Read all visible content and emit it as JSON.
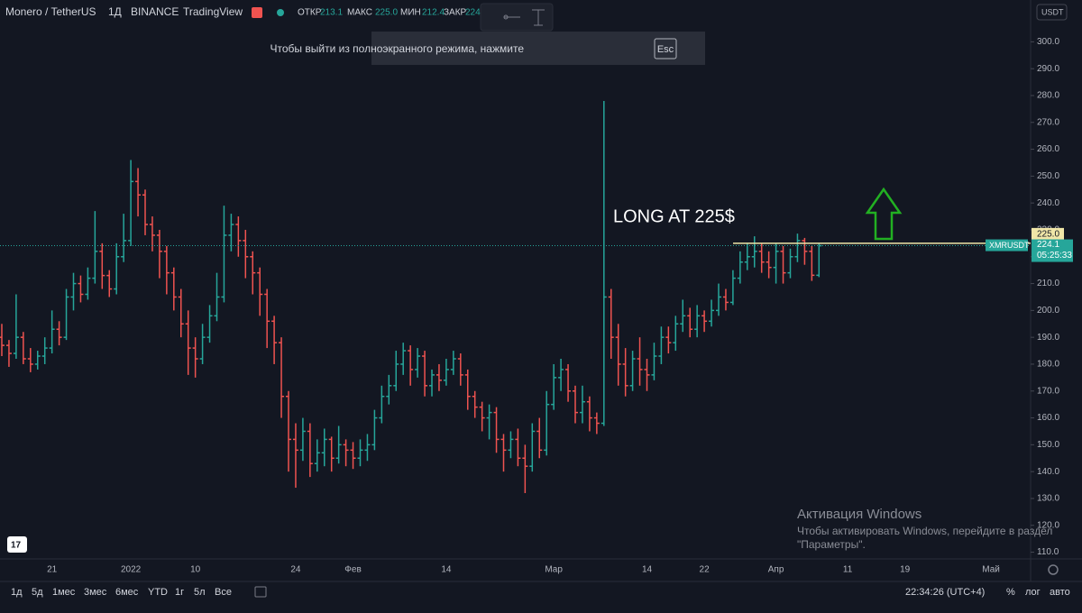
{
  "header": {
    "symbol": "Monero / TetherUS",
    "interval": "1Д",
    "exchange": "BINANCE",
    "source": "TradingView",
    "open_label": "ОТКР",
    "open": 213.1,
    "high_label": "МАКС",
    "high": "225.0",
    "low_label": "МИН",
    "low": 212.4,
    "close_label": "ЗАКР",
    "close": "224"
  },
  "currency": "USDT",
  "fullscreen_notice": {
    "text": "Чтобы выйти из полноэкранного режима, нажмите",
    "key": "Esc"
  },
  "watermark": {
    "title": "Активация Windows",
    "line1": "Чтобы активировать Windows, перейдите в раздел",
    "line2": "\"Параметры\"."
  },
  "timeframes": [
    "1д",
    "5д",
    "1мес",
    "3мес",
    "6мес",
    "YTD",
    "1г",
    "5л",
    "Все"
  ],
  "clock": "22:34:26 (UTC+4)",
  "scale_options": [
    "%",
    "лог",
    "авто"
  ],
  "chart_data": {
    "type": "ohlc",
    "categories": [
      null,
      null,
      null,
      null,
      null,
      null,
      null,
      "21",
      null,
      null,
      null,
      null,
      null,
      null,
      null,
      null,
      null,
      null,
      "2022",
      null,
      null,
      null,
      null,
      null,
      null,
      null,
      null,
      "10",
      null,
      null,
      null,
      null,
      null,
      null,
      null,
      null,
      null,
      null,
      null,
      null,
      null,
      "24",
      null,
      null,
      null,
      null,
      null,
      null,
      null,
      "Фев",
      null,
      null,
      null,
      null,
      null,
      null,
      null,
      null,
      null,
      null,
      null,
      null,
      "14",
      null,
      null,
      null,
      null,
      null,
      null,
      null,
      null,
      null,
      null,
      null,
      null,
      null,
      null,
      "Мар",
      null,
      null,
      null,
      null,
      null,
      null,
      null,
      null,
      null,
      null,
      null,
      null,
      "14",
      null,
      null,
      null,
      null,
      null,
      null,
      null,
      "22",
      null,
      null,
      null,
      null,
      null,
      null,
      null,
      null,
      null,
      "Апр",
      null,
      null,
      null,
      null,
      null,
      null,
      null,
      null,
      null,
      "11",
      null,
      null,
      null,
      null,
      null,
      null,
      null,
      "19",
      null,
      null,
      null,
      null,
      null,
      null,
      null,
      null,
      null,
      null,
      null,
      "Май",
      null,
      null,
      null,
      null,
      null
    ],
    "open": [
      190,
      187,
      184,
      190,
      182,
      180,
      183,
      186,
      193,
      190,
      205,
      210,
      206,
      212,
      222,
      213,
      208,
      220,
      226,
      248,
      243,
      232,
      228,
      222,
      214,
      205,
      195,
      186,
      182,
      190,
      198,
      205,
      228,
      232,
      226,
      220,
      214,
      206,
      196,
      188,
      168,
      152,
      148,
      155,
      143,
      147,
      152,
      145,
      150,
      148,
      145,
      148,
      150,
      160,
      168,
      172,
      180,
      185,
      178,
      183,
      172,
      176,
      174,
      178,
      182,
      176,
      168,
      164,
      160,
      162,
      152,
      148,
      152,
      145,
      142,
      155,
      148,
      165,
      175,
      178,
      170,
      162,
      166,
      160,
      158,
      205,
      190,
      180,
      172,
      182,
      178,
      176,
      183,
      190,
      188,
      195,
      198,
      193,
      198,
      196,
      200,
      205,
      203,
      212,
      218,
      220,
      222,
      218,
      216,
      222,
      214,
      220,
      226,
      222,
      213.1,
      null,
      null,
      null,
      null,
      null,
      null,
      null,
      null,
      null,
      null,
      null,
      null,
      null,
      null,
      null,
      null,
      null,
      null,
      null,
      null,
      null,
      null,
      null,
      null,
      null,
      null,
      null,
      null,
      null
    ],
    "high": [
      195,
      189,
      206,
      192,
      186,
      185,
      190,
      200,
      196,
      208,
      214,
      213,
      216,
      237,
      225,
      215,
      225,
      236,
      256,
      253,
      245,
      235,
      230,
      224,
      216,
      208,
      200,
      190,
      195,
      202,
      214,
      239,
      236,
      235,
      230,
      222,
      216,
      208,
      198,
      190,
      170,
      158,
      160,
      158,
      152,
      156,
      153,
      157,
      152,
      151,
      152,
      154,
      163,
      172,
      176,
      185,
      188,
      187,
      186,
      185,
      178,
      180,
      182,
      185,
      184,
      178,
      170,
      166,
      165,
      164,
      154,
      155,
      156,
      150,
      158,
      160,
      170,
      180,
      182,
      180,
      172,
      172,
      168,
      162,
      278,
      208,
      195,
      186,
      185,
      190,
      182,
      188,
      194,
      194,
      198,
      204,
      201,
      202,
      200,
      204,
      210,
      208,
      215,
      222,
      225,
      227.6,
      225,
      222,
      225,
      224,
      223,
      228.6,
      227,
      224,
      225.0,
      null,
      null,
      null,
      null,
      null,
      null,
      null,
      null,
      null,
      null,
      null,
      null,
      null,
      null,
      null,
      null,
      null,
      null,
      null,
      null,
      null,
      null,
      null,
      null,
      null,
      null,
      null,
      null,
      null
    ],
    "low": [
      183,
      179,
      182,
      180,
      177,
      178,
      180,
      184,
      187,
      189,
      200,
      203,
      204,
      210,
      208,
      205,
      206,
      218,
      224,
      235,
      228,
      222,
      212,
      206,
      200,
      190,
      176,
      175,
      180,
      188,
      196,
      203,
      222,
      220,
      212,
      206,
      198,
      186,
      180,
      160,
      140,
      134,
      144,
      138,
      140,
      142,
      140,
      143,
      142,
      141,
      142,
      144,
      148,
      158,
      165,
      170,
      176,
      172,
      175,
      168,
      168,
      170,
      172,
      176,
      172,
      163,
      160,
      155,
      152,
      147,
      140,
      145,
      142,
      132,
      140,
      145,
      146,
      163,
      170,
      166,
      158,
      158,
      155,
      154,
      157,
      182,
      172,
      168,
      170,
      172,
      170,
      174,
      180,
      184,
      185,
      192,
      190,
      190,
      192,
      194,
      198,
      200,
      202,
      210,
      215,
      216,
      214,
      212,
      210,
      210,
      212,
      218,
      217,
      211,
      212.4,
      null,
      null,
      null,
      null,
      null,
      null,
      null,
      null,
      null,
      null,
      null,
      null,
      null,
      null,
      null,
      null,
      null,
      null,
      null,
      null,
      null,
      null,
      null,
      null,
      null,
      null,
      null,
      null,
      null
    ],
    "close": [
      187,
      184,
      190,
      182,
      180,
      183,
      186,
      193,
      190,
      205,
      210,
      206,
      212,
      222,
      213,
      208,
      220,
      226,
      248,
      243,
      232,
      228,
      222,
      214,
      205,
      195,
      186,
      182,
      190,
      198,
      205,
      228,
      232,
      226,
      220,
      214,
      206,
      196,
      188,
      168,
      152,
      148,
      155,
      143,
      147,
      152,
      145,
      150,
      148,
      145,
      148,
      150,
      160,
      168,
      172,
      180,
      185,
      178,
      183,
      172,
      176,
      174,
      178,
      182,
      176,
      168,
      164,
      160,
      162,
      152,
      148,
      152,
      145,
      142,
      155,
      148,
      165,
      175,
      178,
      170,
      162,
      166,
      160,
      158,
      205,
      190,
      180,
      172,
      182,
      178,
      176,
      183,
      190,
      188,
      195,
      198,
      193,
      198,
      196,
      200,
      205,
      203,
      212,
      218,
      220,
      222,
      218,
      216,
      222,
      214,
      220,
      226,
      222,
      213.1,
      224.1,
      null,
      null,
      null,
      null,
      null,
      null,
      null,
      null,
      null,
      null,
      null,
      null,
      null,
      null,
      null,
      null,
      null,
      null,
      null,
      null,
      null,
      null,
      null,
      null,
      null,
      null,
      null,
      null,
      null
    ],
    "up_color": "#26a69a",
    "down_color": "#ef5350",
    "ylim": [
      107.5,
      305.5
    ],
    "yticks": [
      {
        "value": 110,
        "label": "110.0"
      },
      {
        "value": 120,
        "label": "120.0"
      },
      {
        "value": 130,
        "label": "130.0"
      },
      {
        "value": 140,
        "label": "140.0"
      },
      {
        "value": 150,
        "label": "150.0"
      },
      {
        "value": 160,
        "label": "160.0"
      },
      {
        "value": 170,
        "label": "170.0"
      },
      {
        "value": 180,
        "label": "180.0"
      },
      {
        "value": 190,
        "label": "190.0"
      },
      {
        "value": 200,
        "label": "200.0"
      },
      {
        "value": 210,
        "label": "210.0"
      },
      {
        "value": 220,
        "label": "220.0"
      },
      {
        "value": 230,
        "label": "230.0"
      },
      {
        "value": 240,
        "label": "240.0"
      },
      {
        "value": 250,
        "label": "250.0"
      },
      {
        "value": 260,
        "label": "260.0"
      },
      {
        "value": 270,
        "label": "270.0"
      },
      {
        "value": 280,
        "label": "280.0"
      },
      {
        "value": 290,
        "label": "290.0"
      },
      {
        "value": 300,
        "label": "300.0"
      }
    ],
    "grid": false,
    "annotation": "LONG AT 225$",
    "hline": {
      "value": 225,
      "label": "225.0",
      "color": "#f0e6a8"
    },
    "last_price": 224.1,
    "symbol_label": "XMRUSDT",
    "countdown": "05:25:33"
  }
}
